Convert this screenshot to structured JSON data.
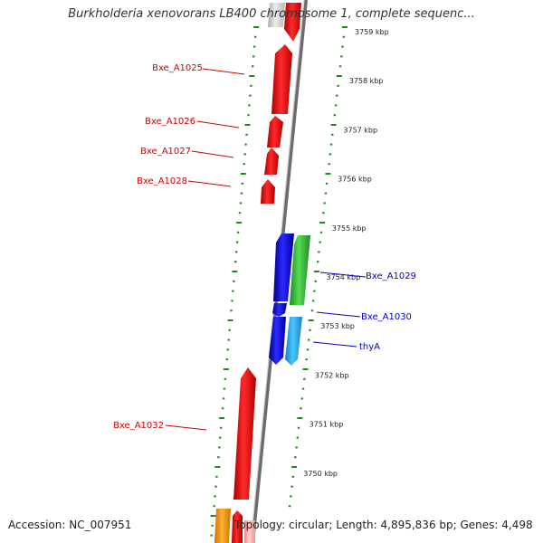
{
  "title": "Burkholderia xenovorans LB400 chromosome 1, complete sequenc...",
  "footer": {
    "accession": "Accession: NC_007951",
    "summary": "Topology: circular; Length: 4,895,836 bp; Genes: 4,498"
  },
  "colors": {
    "backbone": "#9a9a9a",
    "ticks": "#1d8a1d",
    "forward_label": "#cc0000",
    "reverse_label": "#0000cc",
    "gene_red": "#ee0000",
    "gene_blue": "#1010dd",
    "gene_green": "#33bb33",
    "gene_cyan": "#22aaee",
    "gene_grey": "#cccccc",
    "gene_orange": "#ff9900",
    "gene_pink": "#ffaaaa"
  },
  "chart_data": {
    "type": "linear genome map",
    "axis_unit": "kbp",
    "axis_labels": [
      "3759 kbp",
      "3758 kbp",
      "3757 kbp",
      "3756 kbp",
      "3755 kbp",
      "3754 kbp",
      "3753 kbp",
      "3752 kbp",
      "3751 kbp",
      "3750 kbp"
    ],
    "axis_values": [
      3759,
      3758,
      3757,
      3756,
      3755,
      3754,
      3753,
      3752,
      3751,
      3750
    ],
    "forward_genes": [
      {
        "label": "Bxe_A1025",
        "color": "gene_red"
      },
      {
        "label": "Bxe_A1026",
        "color": "gene_red"
      },
      {
        "label": "Bxe_A1027",
        "color": "gene_red"
      },
      {
        "label": "Bxe_A1028",
        "color": "gene_red"
      },
      {
        "label": "Bxe_A1032",
        "color": "gene_red"
      }
    ],
    "reverse_genes": [
      {
        "label": "Bxe_A1029",
        "color": "gene_green"
      },
      {
        "label": "Bxe_A1030",
        "color": "gene_blue"
      },
      {
        "label": "thyA",
        "color": "gene_cyan"
      }
    ]
  }
}
